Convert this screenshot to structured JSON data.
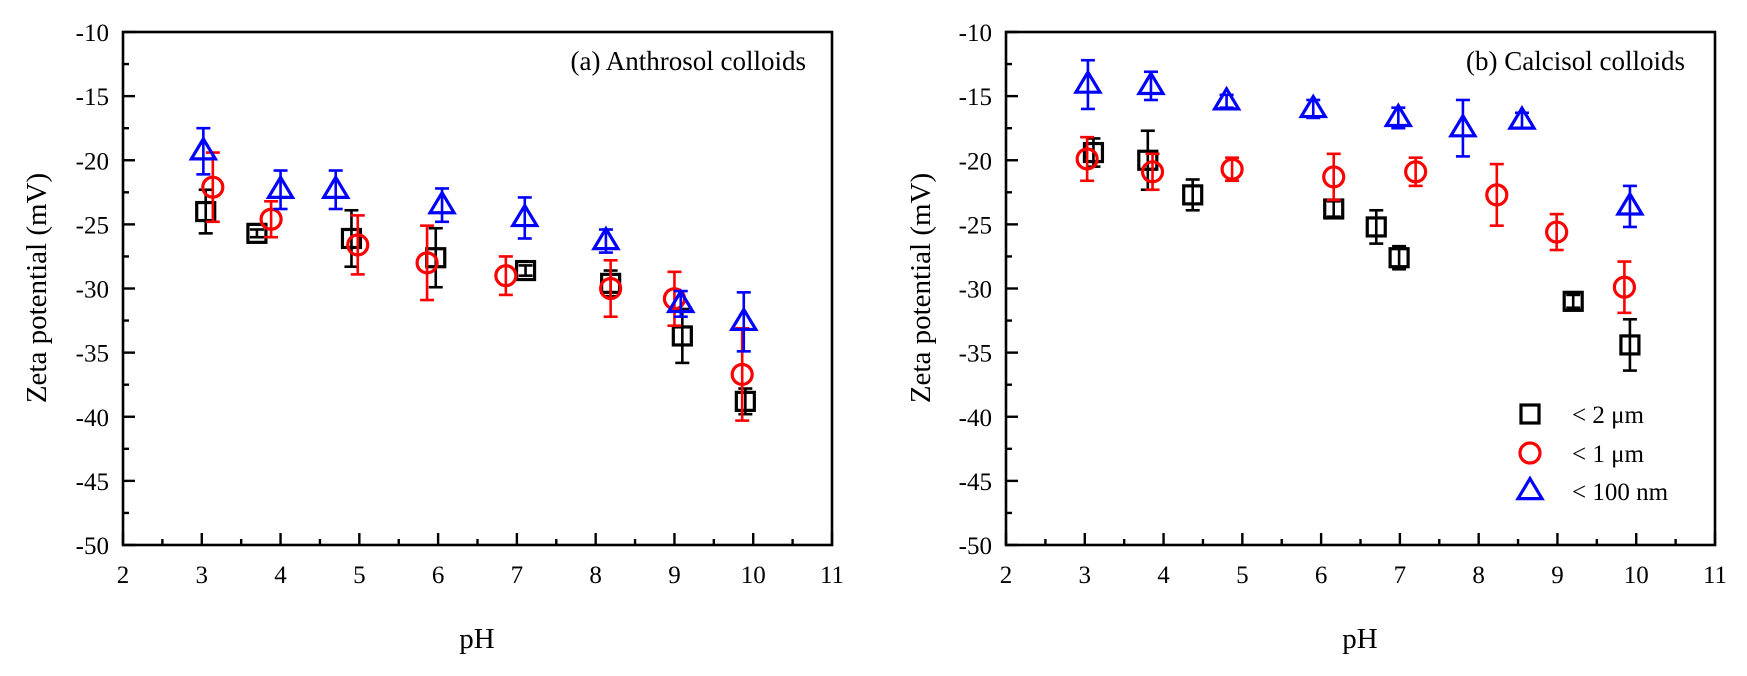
{
  "chart_data": [
    {
      "type": "scatter",
      "title": "(a) Anthrosol colloids",
      "xlabel": "pH",
      "ylabel": "Zeta potential (mV)",
      "xlim": [
        2,
        11
      ],
      "ylim": [
        -50,
        -10
      ],
      "xticks": [
        "2",
        "3",
        "4",
        "5",
        "6",
        "7",
        "8",
        "9",
        "10",
        "11"
      ],
      "yticks": [
        "-10",
        "-15",
        "-20",
        "-25",
        "-30",
        "-35",
        "-40",
        "-45",
        "-50"
      ],
      "grid": false,
      "series": [
        {
          "name": "< 2 μm",
          "marker": "square",
          "color": "#000000",
          "x": [
            3.05,
            3.7,
            4.9,
            5.97,
            7.11,
            8.19,
            9.1,
            9.9
          ],
          "y": [
            -24.0,
            -25.7,
            -26.1,
            -27.6,
            -28.6,
            -29.6,
            -33.7,
            -38.8
          ],
          "err": [
            1.7,
            0.3,
            2.2,
            2.3,
            0.4,
            1.0,
            2.1,
            1.0
          ]
        },
        {
          "name": "< 1 μm",
          "marker": "circle",
          "color": "#ff0000",
          "x": [
            3.14,
            3.88,
            4.98,
            5.86,
            6.86,
            8.19,
            9.0,
            9.86
          ],
          "y": [
            -22.1,
            -24.6,
            -26.6,
            -28.0,
            -29.0,
            -30.0,
            -30.8,
            -36.7
          ],
          "err": [
            2.7,
            1.4,
            2.3,
            2.9,
            1.5,
            2.2,
            2.1,
            3.6
          ]
        },
        {
          "name": "< 100 nm",
          "marker": "triangle",
          "color": "#0000ff",
          "x": [
            3.02,
            4.0,
            4.7,
            6.05,
            7.1,
            8.13,
            9.08,
            9.88
          ],
          "y": [
            -19.3,
            -22.3,
            -22.3,
            -23.5,
            -24.5,
            -26.3,
            -31.2,
            -32.6
          ],
          "err": [
            1.8,
            1.5,
            1.5,
            1.3,
            1.6,
            0.9,
            1.0,
            2.3
          ]
        }
      ]
    },
    {
      "type": "scatter",
      "title": "(b) Calcisol colloids",
      "xlabel": "pH",
      "ylabel": "Zeta potential (mV)",
      "xlim": [
        2,
        11
      ],
      "ylim": [
        -50,
        -10
      ],
      "xticks": [
        "2",
        "3",
        "4",
        "5",
        "6",
        "7",
        "8",
        "9",
        "10",
        "11"
      ],
      "yticks": [
        "-10",
        "-15",
        "-20",
        "-25",
        "-30",
        "-35",
        "-40",
        "-45",
        "-50"
      ],
      "grid": false,
      "legend": "bottom-right",
      "series": [
        {
          "name": "< 2 μm",
          "marker": "square",
          "color": "#000000",
          "x": [
            3.11,
            3.8,
            4.37,
            6.16,
            6.7,
            6.99,
            9.2,
            9.92
          ],
          "y": [
            -19.4,
            -20.0,
            -22.7,
            -23.8,
            -25.2,
            -27.6,
            -31.0,
            -34.4
          ],
          "err": [
            1.1,
            2.3,
            1.2,
            0.6,
            1.3,
            0.9,
            0.5,
            2.0
          ]
        },
        {
          "name": "< 1 μm",
          "marker": "circle",
          "color": "#ff0000",
          "x": [
            3.03,
            3.86,
            4.87,
            6.16,
            7.2,
            8.23,
            8.99,
            9.85
          ],
          "y": [
            -19.9,
            -20.9,
            -20.7,
            -21.3,
            -20.9,
            -22.7,
            -25.6,
            -29.9
          ],
          "err": [
            1.7,
            1.4,
            0.9,
            1.8,
            1.1,
            2.4,
            1.4,
            2.0
          ]
        },
        {
          "name": "< 100 nm",
          "marker": "triangle",
          "color": "#0000ff",
          "x": [
            3.04,
            3.84,
            4.8,
            5.9,
            6.98,
            7.8,
            8.55,
            9.92
          ],
          "y": [
            -14.1,
            -14.2,
            -15.4,
            -16.0,
            -16.7,
            -17.5,
            -16.9,
            -23.6
          ],
          "err": [
            1.9,
            1.1,
            0.5,
            0.7,
            0.8,
            2.2,
            0.6,
            1.6
          ]
        }
      ]
    }
  ]
}
